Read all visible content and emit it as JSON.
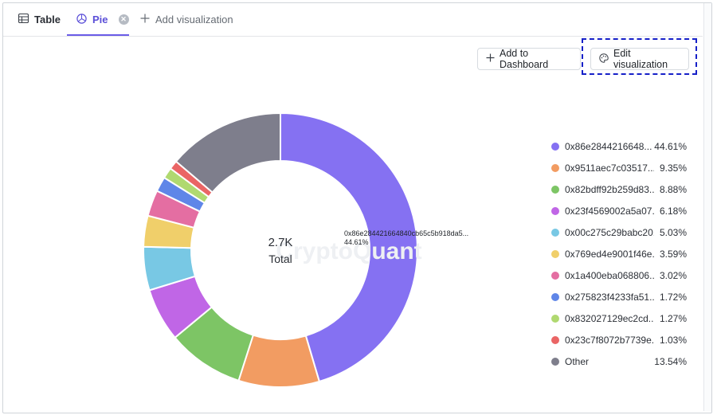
{
  "tabs": {
    "table_label": "Table",
    "pie_label": "Pie",
    "add_label": "Add visualization"
  },
  "toolbar": {
    "add_to_dashboard_label": "Add to Dashboard",
    "edit_visualization_label": "Edit visualization"
  },
  "watermark": "CryptoQuant",
  "colors": {
    "accent": "#6b5ce7",
    "focus_outline": "#1620c8"
  },
  "chart_data": {
    "type": "pie",
    "donut": true,
    "center_value": "2.7K",
    "center_label": "Total",
    "tooltip_label": "0x86e284421664840cb65c5b918da5...",
    "tooltip_value": "44.61%",
    "legend_position": "right",
    "slices": [
      {
        "label": "0x86e2844216648...",
        "percent": 44.61,
        "percent_label": "44.61%",
        "color": "#8571f2"
      },
      {
        "label": "0x9511aec7c03517...",
        "percent": 9.35,
        "percent_label": "9.35%",
        "color": "#f29c62"
      },
      {
        "label": "0x82bdff92b259d83...",
        "percent": 8.88,
        "percent_label": "8.88%",
        "color": "#7dc565"
      },
      {
        "label": "0x23f4569002a5a07...",
        "percent": 6.18,
        "percent_label": "6.18%",
        "color": "#c066e6"
      },
      {
        "label": "0x00c275c29babc20...",
        "percent": 5.03,
        "percent_label": "5.03%",
        "color": "#78c8e4"
      },
      {
        "label": "0x769ed4e9001f46e...",
        "percent": 3.59,
        "percent_label": "3.59%",
        "color": "#f0cf6a"
      },
      {
        "label": "0x1a400eba068806...",
        "percent": 3.02,
        "percent_label": "3.02%",
        "color": "#e46ea2"
      },
      {
        "label": "0x275823f4233fa51...",
        "percent": 1.72,
        "percent_label": "1.72%",
        "color": "#5f86e8"
      },
      {
        "label": "0x832027129ec2cd...",
        "percent": 1.27,
        "percent_label": "1.27%",
        "color": "#b0d970"
      },
      {
        "label": "0x23c7f8072b7739e...",
        "percent": 1.03,
        "percent_label": "1.03%",
        "color": "#ea6565"
      },
      {
        "label": "Other",
        "percent": 13.54,
        "percent_label": "13.54%",
        "color": "#7e7e8c"
      }
    ]
  }
}
